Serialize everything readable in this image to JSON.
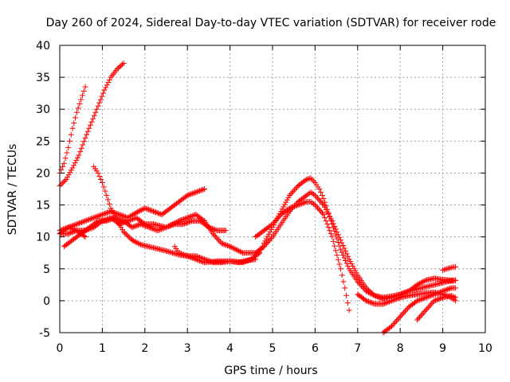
{
  "chart_data": {
    "type": "scatter",
    "title": "Day 260 of 2024, Sidereal Day-to-day VTEC variation (SDTVAR) for receiver rode",
    "xlabel": "GPS time / hours",
    "ylabel": "SDTVAR / TECUs",
    "xlim": [
      0,
      10
    ],
    "ylim": [
      -5,
      40
    ],
    "xticks": [
      0,
      1,
      2,
      3,
      4,
      5,
      6,
      7,
      8,
      9,
      10
    ],
    "yticks": [
      -5,
      0,
      5,
      10,
      15,
      20,
      25,
      30,
      35,
      40
    ],
    "grid": true,
    "legend": "none",
    "marker": "+",
    "color": "#ff0000",
    "series": [
      {
        "name": "s1",
        "x": [
          0.0,
          0.1,
          0.2,
          0.3,
          0.4,
          0.5,
          0.6
        ],
        "y": [
          20.0,
          21.5,
          24.0,
          27.0,
          29.5,
          31.5,
          33.5
        ]
      },
      {
        "name": "s2",
        "x": [
          0.0,
          0.15,
          0.3,
          0.45,
          0.6,
          0.75,
          0.9,
          1.05,
          1.2,
          1.35,
          1.5
        ],
        "y": [
          18.0,
          19.0,
          20.8,
          22.8,
          25.5,
          28.0,
          30.5,
          33.0,
          35.0,
          36.3,
          37.2
        ]
      },
      {
        "name": "s3",
        "x": [
          0.8,
          0.9,
          1.0,
          1.1,
          1.2,
          1.35,
          1.5,
          1.7,
          1.9,
          2.2,
          2.5,
          2.8,
          3.0,
          3.2,
          3.4,
          3.7,
          4.0,
          4.3,
          4.5,
          4.7,
          4.8,
          5.0,
          5.2,
          5.4,
          5.6,
          5.8,
          5.9,
          6.0,
          6.1,
          6.2,
          6.4,
          6.6,
          6.8,
          7.0,
          7.2,
          7.4,
          7.6,
          7.8,
          8.0,
          8.2,
          8.5,
          8.8,
          9.1,
          9.3
        ],
        "y": [
          21.0,
          20.0,
          18.5,
          16.5,
          14.5,
          12.5,
          10.8,
          9.5,
          8.8,
          8.3,
          7.8,
          7.2,
          7.0,
          6.5,
          6.0,
          6.2,
          6.2,
          6.0,
          6.5,
          7.5,
          9.0,
          11.5,
          14.0,
          16.5,
          18.0,
          19.0,
          19.2,
          18.5,
          17.5,
          16.0,
          12.0,
          8.0,
          5.0,
          3.0,
          1.5,
          0.8,
          0.5,
          0.7,
          1.0,
          1.5,
          2.0,
          2.5,
          3.0,
          3.2
        ]
      },
      {
        "name": "s4",
        "x": [
          0.0,
          0.2,
          0.4,
          0.6,
          0.8,
          1.0,
          1.2,
          1.4,
          1.6,
          1.8,
          2.0,
          2.2,
          2.5,
          2.8,
          3.0,
          3.2,
          3.4,
          3.6,
          3.8,
          4.0,
          4.3,
          4.6,
          4.8,
          5.0,
          5.2,
          5.4,
          5.6,
          5.8,
          5.9,
          6.0,
          6.2,
          6.4,
          6.6,
          6.8,
          7.0,
          7.2,
          7.4,
          7.6,
          7.8,
          8.0,
          8.2,
          8.4,
          8.6,
          8.8,
          9.0,
          9.2,
          9.3
        ],
        "y": [
          10.5,
          10.5,
          11.0,
          11.0,
          11.5,
          12.5,
          13.0,
          12.0,
          12.5,
          13.0,
          12.0,
          12.0,
          11.5,
          12.5,
          13.0,
          13.5,
          12.5,
          10.5,
          9.0,
          8.5,
          7.5,
          7.5,
          8.5,
          10.0,
          12.0,
          14.0,
          15.5,
          16.5,
          17.0,
          16.5,
          15.0,
          12.5,
          9.5,
          6.5,
          4.0,
          2.0,
          0.8,
          0.3,
          0.5,
          1.0,
          1.5,
          2.5,
          3.2,
          3.5,
          3.3,
          3.2,
          3.2
        ]
      },
      {
        "name": "s5",
        "x": [
          0.0,
          0.2,
          0.4,
          0.6,
          0.8,
          1.0,
          1.2,
          1.4,
          1.6,
          1.8,
          2.0,
          2.2,
          2.4,
          2.6,
          2.8,
          3.0,
          3.2,
          3.4
        ],
        "y": [
          11.0,
          11.5,
          12.0,
          12.5,
          13.0,
          13.5,
          14.0,
          13.5,
          13.0,
          13.8,
          14.5,
          14.0,
          13.5,
          14.5,
          15.5,
          16.5,
          17.0,
          17.5
        ]
      },
      {
        "name": "s6",
        "x": [
          0.0,
          0.2,
          0.4,
          0.6
        ],
        "y": [
          10.5,
          11.5,
          11.0,
          10.0
        ]
      },
      {
        "name": "s7",
        "x": [
          0.1,
          0.3,
          0.5,
          0.7,
          0.9,
          1.1,
          1.3,
          1.5,
          1.7,
          1.9,
          2.1,
          2.3,
          2.5,
          2.7,
          2.9,
          3.1,
          3.3,
          3.5,
          3.7,
          3.9
        ],
        "y": [
          8.5,
          9.5,
          10.5,
          11.5,
          12.5,
          12.5,
          13.0,
          12.5,
          11.5,
          12.0,
          11.5,
          11.0,
          11.5,
          12.0,
          12.0,
          12.5,
          12.5,
          11.5,
          11.0,
          11.0
        ]
      },
      {
        "name": "s8",
        "x": [
          2.7,
          2.8,
          3.0,
          3.2,
          3.4,
          3.6,
          3.8,
          4.0,
          4.2,
          4.4,
          4.6
        ],
        "y": [
          8.5,
          7.5,
          7.0,
          7.0,
          6.5,
          6.0,
          6.0,
          6.2,
          6.0,
          6.3,
          6.5
        ]
      },
      {
        "name": "s9",
        "x": [
          4.6,
          4.8,
          5.0,
          5.2,
          5.4,
          5.6,
          5.8,
          5.9,
          6.0,
          6.2,
          6.4,
          6.6,
          6.7,
          6.8
        ],
        "y": [
          10.0,
          11.0,
          12.0,
          13.5,
          14.5,
          15.0,
          15.5,
          15.5,
          15.0,
          13.5,
          10.0,
          5.0,
          2.0,
          -1.5
        ]
      },
      {
        "name": "s10",
        "x": [
          7.6,
          7.8,
          8.0,
          8.2,
          8.4,
          8.6,
          8.8,
          9.0,
          9.2,
          9.3
        ],
        "y": [
          -5.0,
          -4.0,
          -2.5,
          -1.0,
          0.0,
          0.5,
          1.0,
          1.5,
          2.0,
          2.0
        ]
      },
      {
        "name": "s11",
        "x": [
          8.4,
          8.6,
          8.8,
          9.0,
          9.2,
          9.3
        ],
        "y": [
          -3.0,
          -1.5,
          0.0,
          0.5,
          0.8,
          0.5
        ]
      },
      {
        "name": "s12",
        "x": [
          9.0,
          9.1,
          9.2,
          9.3
        ],
        "y": [
          4.8,
          5.0,
          5.2,
          5.3
        ]
      },
      {
        "name": "s13",
        "x": [
          7.0,
          7.2,
          7.4,
          7.6,
          7.8,
          8.0,
          8.2,
          8.4,
          8.6,
          8.8,
          9.0,
          9.2,
          9.3
        ],
        "y": [
          1.0,
          0.0,
          -0.5,
          -0.5,
          0.0,
          0.5,
          0.8,
          1.0,
          1.2,
          1.3,
          1.0,
          0.5,
          0.0
        ]
      }
    ]
  }
}
